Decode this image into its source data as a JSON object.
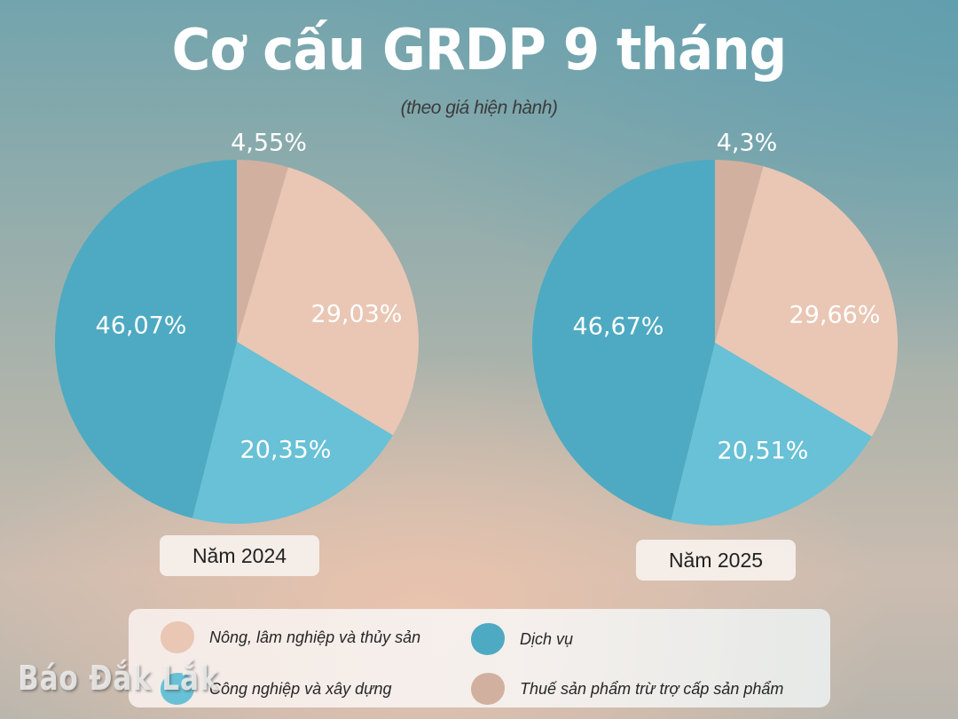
{
  "header": {
    "title": "Cơ cấu GRDP 9 tháng",
    "subtitle": "(theo giá hiện hành)"
  },
  "colors": {
    "nong_lam_thuy_san": "#e9c7b4",
    "cong_nghiep_xay_dung": "#68c1d6",
    "dich_vu": "#4eaac2",
    "thue_san_pham": "#d2b0a0"
  },
  "pies": [
    {
      "year_label": "Năm 2024",
      "slices": [
        {
          "key": "thue_san_pham",
          "value": 4.55,
          "label": "4,55%"
        },
        {
          "key": "nong_lam_thuy_san",
          "value": 29.03,
          "label": "29,03%"
        },
        {
          "key": "cong_nghiep_xay_dung",
          "value": 20.35,
          "label": "20,35%"
        },
        {
          "key": "dich_vu",
          "value": 46.07,
          "label": "46,07%"
        }
      ]
    },
    {
      "year_label": "Năm 2025",
      "slices": [
        {
          "key": "thue_san_pham",
          "value": 4.3,
          "label": "4,3%"
        },
        {
          "key": "nong_lam_thuy_san",
          "value": 29.66,
          "label": "29,66%"
        },
        {
          "key": "cong_nghiep_xay_dung",
          "value": 20.51,
          "label": "20,51%"
        },
        {
          "key": "dich_vu",
          "value": 46.67,
          "label": "46,67%"
        }
      ]
    }
  ],
  "legend": {
    "items": [
      {
        "key": "nong_lam_thuy_san",
        "label": "Nông, lâm nghiệp và thủy sản"
      },
      {
        "key": "dich_vu",
        "label": "Dịch vụ"
      },
      {
        "key": "cong_nghiep_xay_dung",
        "label": "Công nghiệp và xây dựng"
      },
      {
        "key": "thue_san_pham",
        "label": "Thuế sản phẩm trừ trợ cấp sản phẩm"
      }
    ]
  },
  "watermark": "Báo Đắk Lắk",
  "chart_data": [
    {
      "type": "pie",
      "title": "Cơ cấu GRDP 9 tháng (theo giá hiện hành) - Năm 2024",
      "categories": [
        "Thuế sản phẩm trừ trợ cấp sản phẩm",
        "Nông, lâm nghiệp và thủy sản",
        "Công nghiệp và xây dựng",
        "Dịch vụ"
      ],
      "values": [
        4.55,
        29.03,
        20.35,
        46.07
      ],
      "unit": "%",
      "legend_position": "bottom"
    },
    {
      "type": "pie",
      "title": "Cơ cấu GRDP 9 tháng (theo giá hiện hành) - Năm 2025",
      "categories": [
        "Thuế sản phẩm trừ trợ cấp sản phẩm",
        "Nông, lâm nghiệp và thủy sản",
        "Công nghiệp và xây dựng",
        "Dịch vụ"
      ],
      "values": [
        4.3,
        29.66,
        20.51,
        46.67
      ],
      "unit": "%",
      "legend_position": "bottom"
    }
  ]
}
